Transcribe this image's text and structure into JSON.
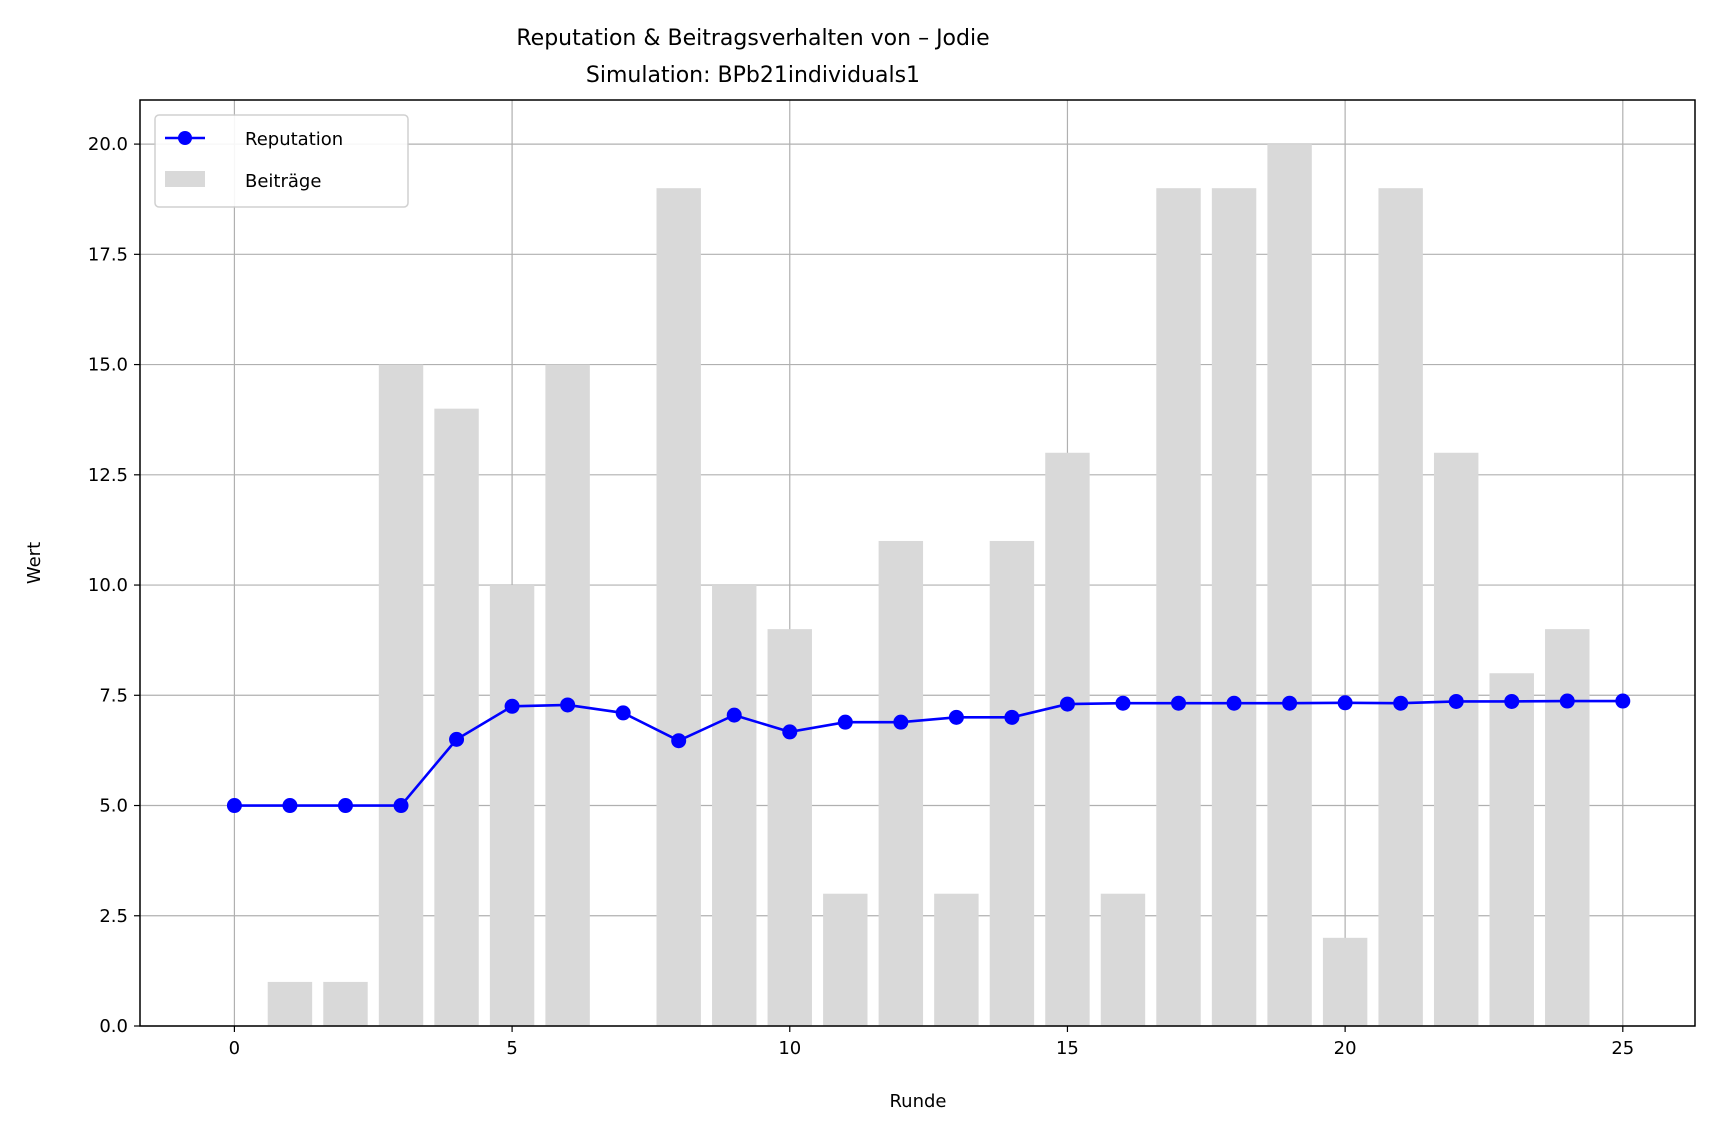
{
  "chart_data": {
    "type": "bar+line",
    "title": "Reputation & Beitragsverhalten von – Jodie",
    "subtitle": "Simulation: BPb21individuals1",
    "xlabel": "Runde",
    "ylabel": "Wert",
    "xlim": [
      -1.7,
      26.3
    ],
    "ylim": [
      0,
      21
    ],
    "xticks": [
      0,
      5,
      10,
      15,
      20,
      25
    ],
    "yticks": [
      0.0,
      2.5,
      5.0,
      7.5,
      10.0,
      12.5,
      15.0,
      17.5,
      20.0
    ],
    "ytick_labels": [
      "0.0",
      "2.5",
      "5.0",
      "7.5",
      "10.0",
      "12.5",
      "15.0",
      "17.5",
      "20.0"
    ],
    "grid": true,
    "legend": "top-left",
    "x": [
      0,
      1,
      2,
      3,
      4,
      5,
      6,
      7,
      8,
      9,
      10,
      11,
      12,
      13,
      14,
      15,
      16,
      17,
      18,
      19,
      20,
      21,
      22,
      23,
      24,
      25
    ],
    "series": [
      {
        "name": "Reputation",
        "kind": "line",
        "color": "#0000ff",
        "values": [
          5.0,
          5.0,
          5.0,
          5.0,
          6.5,
          7.25,
          7.28,
          7.1,
          6.47,
          7.05,
          6.67,
          6.89,
          6.89,
          7.0,
          7.0,
          7.3,
          7.32,
          7.32,
          7.32,
          7.32,
          7.33,
          7.32,
          7.36,
          7.36,
          7.37,
          7.37
        ]
      },
      {
        "name": "Beiträge",
        "kind": "bar",
        "color": "#d9d9d9",
        "values": [
          0,
          1,
          1,
          15,
          14,
          10,
          15,
          0,
          19,
          10,
          9,
          3,
          11,
          3,
          11,
          13,
          3,
          19,
          19,
          20,
          2,
          19,
          13,
          8,
          9,
          0
        ]
      }
    ]
  }
}
